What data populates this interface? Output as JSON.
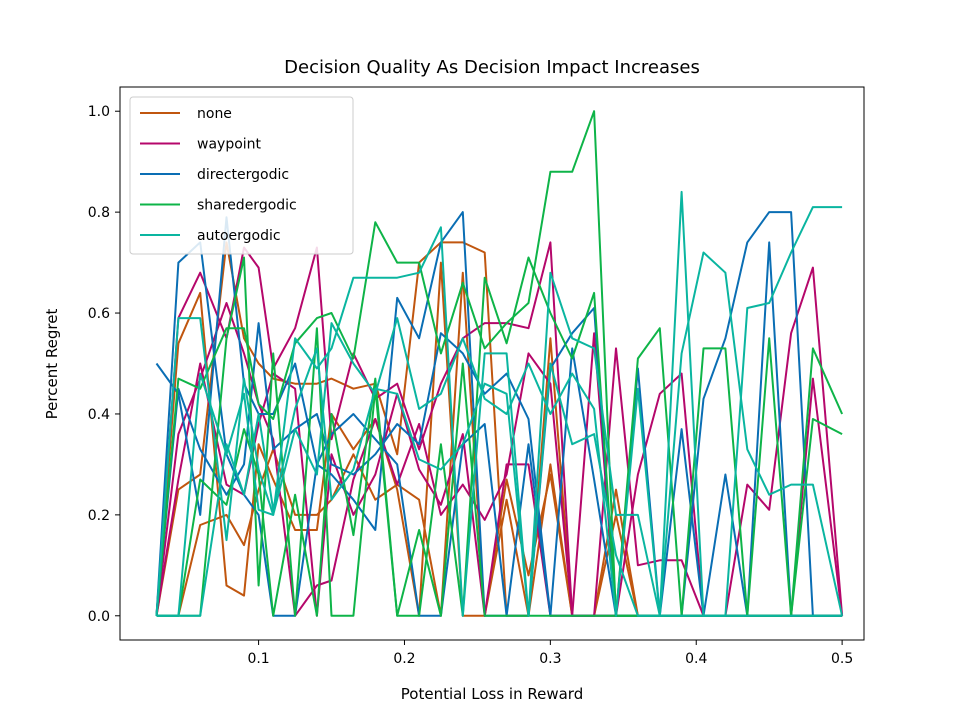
{
  "chart_data": {
    "type": "line",
    "title": "Decision Quality As Decision Impact Increases",
    "xlabel": "Potential Loss in Reward",
    "ylabel": "Percent Regret",
    "xlim": [
      0.005,
      0.515
    ],
    "ylim": [
      -0.048,
      1.048
    ],
    "xticks": [
      0.1,
      0.2,
      0.3,
      0.4,
      0.5
    ],
    "xtick_labels": [
      "0.1",
      "0.2",
      "0.3",
      "0.4",
      "0.5"
    ],
    "yticks": [
      0.0,
      0.2,
      0.4,
      0.6,
      0.8,
      1.0
    ],
    "ytick_labels": [
      "0.0",
      "0.2",
      "0.4",
      "0.6",
      "0.8",
      "1.0"
    ],
    "grid": false,
    "legend_position": "top-left",
    "x": [
      0.03,
      0.045,
      0.06,
      0.078,
      0.09,
      0.1,
      0.11,
      0.125,
      0.14,
      0.15,
      0.165,
      0.18,
      0.195,
      0.21,
      0.225,
      0.24,
      0.255,
      0.27,
      0.285,
      0.3,
      0.315,
      0.33,
      0.345,
      0.36,
      0.375,
      0.39,
      0.405,
      0.42,
      0.435,
      0.45,
      0.465,
      0.48,
      0.5
    ],
    "series": [
      {
        "name": "none",
        "color": "#c0560f",
        "values": [
          [
            0,
            0.25,
            0.28,
            0.74,
            0.55,
            0.5,
            0.47,
            0.46,
            0.46,
            0.47,
            0.45,
            0.46,
            0.32,
            0.7,
            0.74,
            0.74,
            0.72,
            0.0,
            0.0,
            0.55,
            0.0,
            0.0,
            0.25,
            0.0,
            0.0,
            0.0,
            0.0,
            0.0,
            0.0,
            0.0,
            0.0,
            0.0,
            0.0
          ],
          [
            0,
            0.54,
            0.64,
            0.06,
            0.04,
            0.34,
            0.27,
            0.17,
            0.17,
            0.4,
            0.33,
            0.39,
            0.25,
            0.0,
            0.7,
            0.0,
            0.0,
            0.23,
            0.0,
            0.3,
            0.0,
            0.0,
            0.2,
            0.0,
            0.0,
            0.0,
            0.0,
            0.0,
            0.0,
            0.0,
            0.0,
            0.0,
            0.0
          ],
          [
            0,
            0.0,
            0.18,
            0.2,
            0.14,
            0.25,
            0.33,
            0.2,
            0.2,
            0.23,
            0.32,
            0.23,
            0.26,
            0.23,
            0.0,
            0.68,
            0.0,
            0.27,
            0.08,
            0.28,
            0.0,
            0.0,
            0.0,
            0.0,
            0.0,
            0.0,
            0.0,
            0.0,
            0.0,
            0.0,
            0.0,
            0.0,
            0.0
          ]
        ]
      },
      {
        "name": "waypoint",
        "color": "#b5076b",
        "values": [
          [
            0,
            0.59,
            0.68,
            0.55,
            0.73,
            0.69,
            0.49,
            0.57,
            0.73,
            0.35,
            0.52,
            0.43,
            0.46,
            0.33,
            0.46,
            0.55,
            0.58,
            0.58,
            0.57,
            0.74,
            0.0,
            0.0,
            0.53,
            0.1,
            0.11,
            0.11,
            0.0,
            0.0,
            0.26,
            0.21,
            0.56,
            0.69,
            0.0
          ],
          [
            0,
            0.36,
            0.47,
            0.62,
            0.52,
            0.42,
            0.35,
            0.0,
            0.06,
            0.07,
            0.27,
            0.39,
            0.26,
            0.38,
            0.2,
            0.26,
            0.19,
            0.28,
            0.52,
            0.46,
            0.0,
            0.56,
            0.0,
            0.28,
            0.44,
            0.48,
            0.0,
            0.0,
            0.0,
            0.0,
            0.0,
            0.47,
            0.0
          ],
          [
            0,
            0.27,
            0.5,
            0.26,
            0.24,
            0.38,
            0.48,
            0.45,
            0.0,
            0.32,
            0.2,
            0.28,
            0.44,
            0.29,
            0.22,
            0.36,
            0.0,
            0.3,
            0.3,
            0.0,
            0.0,
            0.0,
            0.0,
            0.0,
            0.0,
            0.0,
            0.0,
            0.0,
            0.0,
            0.0,
            0.0,
            0.0,
            0.0
          ]
        ]
      },
      {
        "name": "directergodic",
        "color": "#0a6eb4",
        "values": [
          [
            0.5,
            0.44,
            0.2,
            0.79,
            0.46,
            0.4,
            0.4,
            0.5,
            0.3,
            0.28,
            0.23,
            0.17,
            0.63,
            0.55,
            0.74,
            0.8,
            0.0,
            0.0,
            0.0,
            0.49,
            0.56,
            0.61,
            0.0,
            0.0,
            0.0,
            0.0,
            0.43,
            0.55,
            0.74,
            0.8,
            0.8,
            0.0,
            0.0
          ],
          [
            0,
            0.7,
            0.74,
            0.32,
            0.24,
            0.2,
            0.0,
            0.0,
            0.3,
            0.36,
            0.4,
            0.35,
            0.3,
            0.0,
            0.0,
            0.34,
            0.38,
            0.0,
            0.34,
            0.0,
            0.53,
            0.27,
            0.0,
            0.49,
            0.0,
            0.37,
            0.0,
            0.28,
            0.0,
            0.74,
            0.0,
            0.0,
            0.0
          ],
          [
            0,
            0.45,
            0.33,
            0.24,
            0.3,
            0.58,
            0.33,
            0.37,
            0.4,
            0.3,
            0.28,
            0.32,
            0.38,
            0.34,
            0.56,
            0.52,
            0.44,
            0.48,
            0.39,
            0.0,
            0.0,
            0.0,
            0.0,
            0.0,
            0.0,
            0.0,
            0.0,
            0.0,
            0.0,
            0.0,
            0.0,
            0.0,
            0.0
          ]
        ]
      },
      {
        "name": "sharedergodic",
        "color": "#0eb448",
        "values": [
          [
            0,
            0.47,
            0.45,
            0.57,
            0.57,
            0.42,
            0.39,
            0.54,
            0.59,
            0.6,
            0.51,
            0.78,
            0.7,
            0.7,
            0.52,
            0.66,
            0.53,
            0.58,
            0.62,
            0.88,
            0.88,
            1.0,
            0.0,
            0.0,
            0.0,
            0.0,
            0.53,
            0.53,
            0.0,
            0.0,
            0.0,
            0.53,
            0.4
          ],
          [
            0,
            0.0,
            0.0,
            0.55,
            0.71,
            0.06,
            0.52,
            0.0,
            0.57,
            0.0,
            0.0,
            0.45,
            0.0,
            0.0,
            0.34,
            0.0,
            0.67,
            0.54,
            0.71,
            0.6,
            0.51,
            0.64,
            0.0,
            0.51,
            0.57,
            0.0,
            0.0,
            0.0,
            0.0,
            0.55,
            0.0,
            0.39,
            0.36
          ],
          [
            0,
            0.0,
            0.27,
            0.22,
            0.37,
            0.28,
            0.0,
            0.24,
            0.0,
            0.4,
            0.16,
            0.47,
            0.0,
            0.17,
            0.0,
            0.5,
            0.0,
            0.0,
            0.0,
            0.0,
            0.0,
            0.0,
            0.0,
            0.0,
            0.0,
            0.0,
            0.0,
            0.0,
            0.0,
            0.0,
            0.0,
            0.0,
            0.0
          ]
        ]
      },
      {
        "name": "autoergodic",
        "color": "#0ab5a0",
        "values": [
          [
            0,
            0.59,
            0.59,
            0.15,
            0.47,
            0.29,
            0.2,
            0.55,
            0.49,
            0.53,
            0.67,
            0.67,
            0.67,
            0.68,
            0.77,
            0.0,
            0.52,
            0.52,
            0.0,
            0.68,
            0.55,
            0.53,
            0.2,
            0.2,
            0.0,
            0.84,
            0.0,
            0.0,
            0.61,
            0.62,
            0.72,
            0.81,
            0.81
          ],
          [
            0,
            0.0,
            0.48,
            0.32,
            0.44,
            0.21,
            0.2,
            0.37,
            0.28,
            0.58,
            0.5,
            0.44,
            0.59,
            0.41,
            0.44,
            0.55,
            0.43,
            0.4,
            0.5,
            0.4,
            0.48,
            0.41,
            0.0,
            0.45,
            0.0,
            0.52,
            0.72,
            0.68,
            0.33,
            0.24,
            0.26,
            0.26,
            0.0
          ],
          [
            0,
            0.0,
            0.0,
            0.34,
            0.24,
            0.4,
            0.21,
            0.41,
            0.53,
            0.23,
            0.29,
            0.45,
            0.44,
            0.31,
            0.29,
            0.34,
            0.46,
            0.44,
            0.0,
            0.5,
            0.34,
            0.36,
            0.12,
            0.0,
            0.0,
            0.0,
            0.0,
            0.0,
            0.0,
            0.0,
            0.0,
            0.0,
            0.0
          ]
        ]
      }
    ]
  }
}
